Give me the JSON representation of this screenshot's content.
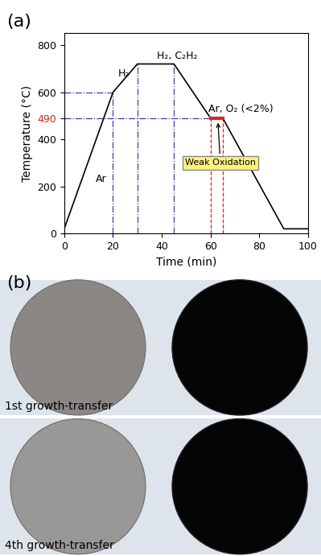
{
  "panel_label": "(a)",
  "chart_data": {
    "type": "line",
    "x_label": "Time (min)",
    "y_label": "Temperature (°C)",
    "x": [
      0,
      20,
      30,
      45,
      60,
      65,
      90,
      100
    ],
    "values": [
      20,
      600,
      720,
      720,
      490,
      490,
      20,
      20
    ],
    "color": "#000000",
    "xlim": [
      0,
      100
    ],
    "xticks": [
      0,
      20,
      40,
      60,
      80,
      100
    ],
    "ylim": [
      0,
      850
    ],
    "yticks": [
      0,
      200,
      400,
      490,
      600,
      800
    ],
    "grid": false,
    "annotations": [
      {
        "text": "Ar",
        "x": 13,
        "y": 230
      },
      {
        "text": "H₂",
        "x": 22,
        "y": 680
      },
      {
        "text": "H₂, C₂H₂",
        "x": 38,
        "y": 755
      },
      {
        "text": "Ar, O₂ (<2%)",
        "x": 59,
        "y": 530
      },
      {
        "text": "Weak Oxidation",
        "x": 64,
        "y": 300
      }
    ]
  },
  "photo_panel": {
    "label": "(b)",
    "rows": [
      {
        "caption": "1st growth-transfer"
      },
      {
        "caption": "4th growth-transfer"
      }
    ]
  }
}
